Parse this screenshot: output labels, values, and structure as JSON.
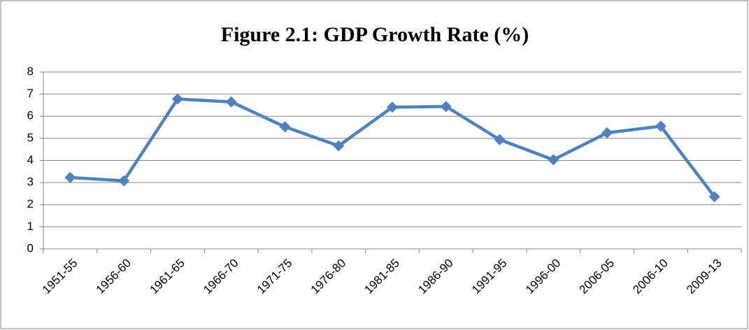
{
  "chart_data": {
    "type": "line",
    "title": "Figure 2.1: GDP Growth Rate (%)",
    "categories": [
      "1951-55",
      "1956-60",
      "1961-65",
      "1966-70",
      "1971-75",
      "1976-80",
      "1981-85",
      "1986-90",
      "1991-95",
      "1996-00",
      "2006-05",
      "2006-10",
      "2009-13"
    ],
    "series": [
      {
        "name": "GDP Growth Rate",
        "color": "#4f81bd",
        "values": [
          3.23,
          3.08,
          6.78,
          6.65,
          5.52,
          4.66,
          6.41,
          6.44,
          4.94,
          4.03,
          5.25,
          5.55,
          2.36
        ]
      }
    ],
    "ylim": [
      0,
      8
    ],
    "yticks": [
      0,
      1,
      2,
      3,
      4,
      5,
      6,
      7,
      8
    ],
    "grid": true
  }
}
